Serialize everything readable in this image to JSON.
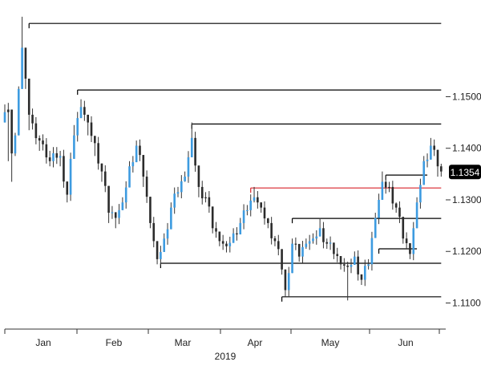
{
  "chart_data": {
    "type": "candlestick",
    "title": "",
    "xlabel": "2019",
    "ylabel": "",
    "ylim": [
      1.1065,
      1.1675
    ],
    "y_ticks": [
      1.11,
      1.12,
      1.13,
      1.14,
      1.15
    ],
    "y_tick_labels": [
      "1.1100",
      "1.1200",
      "1.1300",
      "1.1400",
      "1.1500"
    ],
    "x_labels": [
      "Jan",
      "Feb",
      "Mar",
      "Apr",
      "May",
      "Jun"
    ],
    "current_price": 1.1354,
    "current_price_label": "1.1354",
    "colors": {
      "up": "#3d9be0",
      "down": "#2b2b2b",
      "level_line": "#000000",
      "highlight_line": "#d9232a",
      "price_tag": "#000000"
    },
    "levels": [
      {
        "name": "resistance-1",
        "y": 1.1642,
        "x_from": 7,
        "x_to": 126,
        "color": "#000000"
      },
      {
        "name": "resistance-2",
        "y": 1.1513,
        "x_from": 21,
        "x_to": 126,
        "color": "#000000"
      },
      {
        "name": "resistance-3",
        "y": 1.1447,
        "x_from": 54,
        "x_to": 126,
        "color": "#000000"
      },
      {
        "name": "range-top",
        "y": 1.1348,
        "x_from": 110,
        "x_to": 122,
        "color": "#000000"
      },
      {
        "name": "red-level",
        "y": 1.1323,
        "x_from": 71,
        "x_to": 126,
        "color": "#d9232a"
      },
      {
        "name": "support-1",
        "y": 1.1264,
        "x_from": 83,
        "x_to": 126,
        "color": "#000000"
      },
      {
        "name": "range-bottom",
        "y": 1.1205,
        "x_from": 108,
        "x_to": 119,
        "color": "#000000"
      },
      {
        "name": "support-2",
        "y": 1.1177,
        "x_from": 45,
        "x_to": 126,
        "color": "#000000"
      },
      {
        "name": "support-3",
        "y": 1.1112,
        "x_from": 80,
        "x_to": 126,
        "color": "#000000"
      }
    ],
    "anchor_points": [
      [
        0,
        1.147,
        1.1485,
        1.1455,
        "up"
      ],
      [
        1,
        1.1475,
        1.1488,
        1.1375,
        "down"
      ],
      [
        2,
        1.139,
        1.1398,
        1.1335,
        "down"
      ],
      [
        3,
        1.1425,
        1.143,
        1.1385,
        "up"
      ],
      [
        4,
        1.1515,
        1.152,
        1.1485,
        "up"
      ],
      [
        5,
        1.1595,
        1.1655,
        1.1575,
        "up"
      ],
      [
        6,
        1.1535,
        1.156,
        1.1515,
        "down"
      ],
      [
        7,
        1.1465,
        1.1475,
        1.1435,
        "down"
      ],
      [
        10,
        1.1415,
        1.1425,
        1.1395,
        "down"
      ],
      [
        13,
        1.1375,
        1.1395,
        1.1365,
        "down"
      ],
      [
        16,
        1.1385,
        1.1395,
        1.1365,
        "up"
      ],
      [
        18,
        1.131,
        1.1325,
        1.1295,
        "down"
      ],
      [
        20,
        1.1425,
        1.1445,
        1.1405,
        "up"
      ],
      [
        22,
        1.148,
        1.1495,
        1.1465,
        "up"
      ],
      [
        24,
        1.145,
        1.1465,
        1.1425,
        "down"
      ],
      [
        26,
        1.141,
        1.142,
        1.1385,
        "down"
      ],
      [
        28,
        1.1355,
        1.1365,
        1.1335,
        "down"
      ],
      [
        30,
        1.1275,
        1.1285,
        1.1255,
        "down"
      ],
      [
        32,
        1.1265,
        1.1275,
        1.1245,
        "down"
      ],
      [
        34,
        1.1295,
        1.1305,
        1.1285,
        "up"
      ],
      [
        36,
        1.1365,
        1.1375,
        1.1345,
        "up"
      ],
      [
        38,
        1.1405,
        1.1415,
        1.1395,
        "up"
      ],
      [
        40,
        1.1345,
        1.1355,
        1.1325,
        "down"
      ],
      [
        42,
        1.1255,
        1.1265,
        1.1245,
        "down"
      ],
      [
        44,
        1.1185,
        1.1195,
        1.1175,
        "down"
      ],
      [
        46,
        1.1225,
        1.1235,
        1.1215,
        "up"
      ],
      [
        48,
        1.1285,
        1.1295,
        1.1275,
        "up"
      ],
      [
        50,
        1.1315,
        1.1325,
        1.1305,
        "up"
      ],
      [
        52,
        1.1345,
        1.1355,
        1.1335,
        "up"
      ],
      [
        54,
        1.142,
        1.145,
        1.141,
        "up"
      ],
      [
        56,
        1.1325,
        1.1335,
        1.1305,
        "down"
      ],
      [
        58,
        1.1305,
        1.1315,
        1.1295,
        "down"
      ],
      [
        60,
        1.1245,
        1.1255,
        1.1235,
        "down"
      ],
      [
        62,
        1.122,
        1.123,
        1.121,
        "down"
      ],
      [
        64,
        1.121,
        1.122,
        1.1198,
        "down"
      ],
      [
        66,
        1.1235,
        1.1245,
        1.1225,
        "up"
      ],
      [
        68,
        1.1255,
        1.1265,
        1.1245,
        "up"
      ],
      [
        70,
        1.128,
        1.129,
        1.127,
        "up"
      ],
      [
        72,
        1.1305,
        1.1325,
        1.1295,
        "up"
      ],
      [
        74,
        1.1285,
        1.1295,
        1.1275,
        "down"
      ],
      [
        76,
        1.1255,
        1.1265,
        1.1245,
        "down"
      ],
      [
        78,
        1.122,
        1.123,
        1.121,
        "down"
      ],
      [
        80,
        1.1165,
        1.1175,
        1.1155,
        "down"
      ],
      [
        81,
        1.1125,
        1.1135,
        1.1112,
        "down"
      ],
      [
        83,
        1.1215,
        1.1225,
        1.1205,
        "up"
      ],
      [
        85,
        1.119,
        1.12,
        1.118,
        "down"
      ],
      [
        87,
        1.1215,
        1.1225,
        1.1205,
        "up"
      ],
      [
        89,
        1.1225,
        1.1235,
        1.1215,
        "up"
      ],
      [
        91,
        1.1245,
        1.1265,
        1.1235,
        "up"
      ],
      [
        93,
        1.1215,
        1.1225,
        1.1205,
        "down"
      ],
      [
        95,
        1.1195,
        1.1205,
        1.1185,
        "down"
      ],
      [
        97,
        1.1175,
        1.1185,
        1.1165,
        "down"
      ],
      [
        99,
        1.117,
        1.118,
        1.1105,
        "down"
      ],
      [
        101,
        1.119,
        1.12,
        1.118,
        "up"
      ],
      [
        103,
        1.1145,
        1.1155,
        1.1135,
        "down"
      ],
      [
        105,
        1.1175,
        1.1185,
        1.1165,
        "up"
      ],
      [
        107,
        1.1265,
        1.1275,
        1.1255,
        "up"
      ],
      [
        109,
        1.1335,
        1.1355,
        1.1325,
        "up"
      ],
      [
        111,
        1.1325,
        1.1335,
        1.1315,
        "down"
      ],
      [
        113,
        1.1285,
        1.1295,
        1.1275,
        "down"
      ],
      [
        115,
        1.1225,
        1.1235,
        1.1215,
        "down"
      ],
      [
        117,
        1.1195,
        1.1205,
        1.1185,
        "down"
      ],
      [
        119,
        1.1295,
        1.1305,
        1.1285,
        "up"
      ],
      [
        121,
        1.1375,
        1.1385,
        1.1365,
        "up"
      ],
      [
        123,
        1.1405,
        1.142,
        1.1395,
        "up"
      ],
      [
        125,
        1.1365,
        1.1375,
        1.1345,
        "down"
      ],
      [
        126,
        1.1355,
        1.137,
        1.1345,
        "down"
      ]
    ]
  }
}
